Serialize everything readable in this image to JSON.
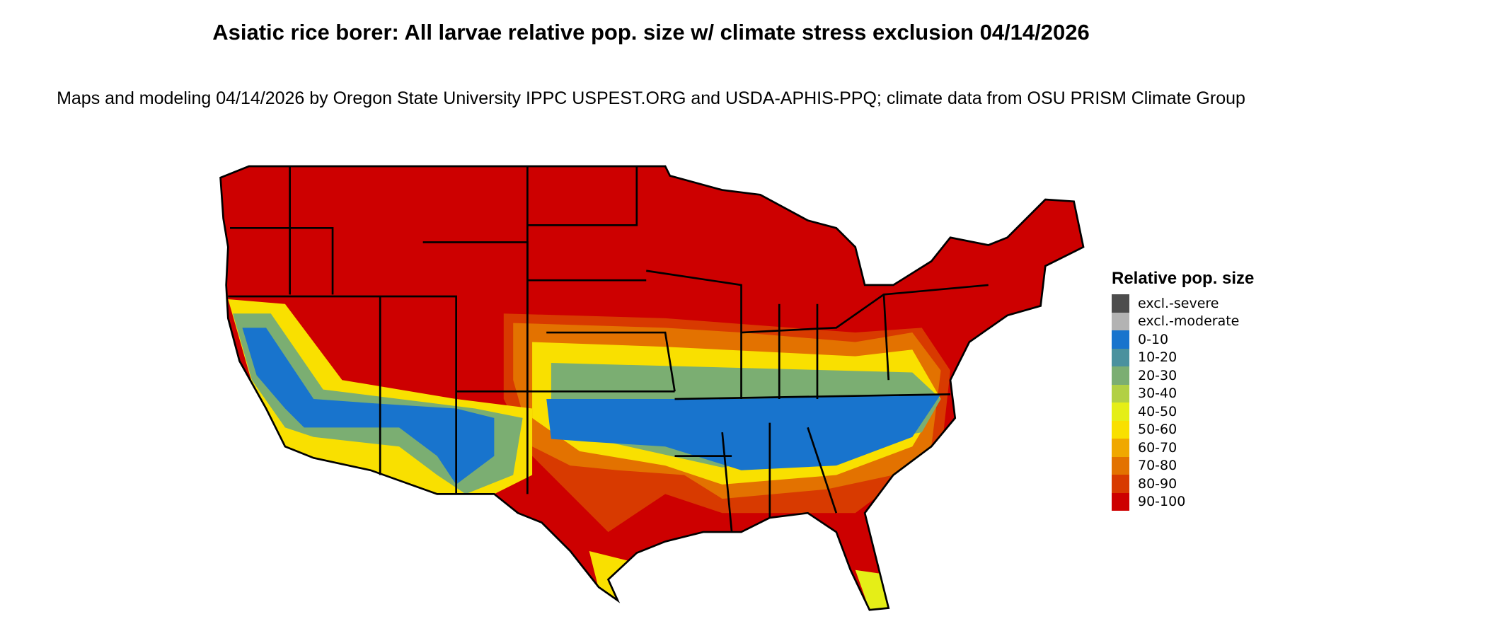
{
  "title": "Asiatic rice borer: All larvae relative pop. size w/ climate stress exclusion 04/14/2026",
  "subtitle": "Maps and modeling 04/14/2026 by Oregon State University IPPC USPEST.ORG and USDA-APHIS-PPQ; climate data from OSU PRISM Climate Group",
  "legend": {
    "title": "Relative pop. size",
    "items": [
      {
        "label": "excl.-severe",
        "color": "#4d4d4d"
      },
      {
        "label": "excl.-moderate",
        "color": "#b3b3b3"
      },
      {
        "label": "0-10",
        "color": "#1874cd"
      },
      {
        "label": "10-20",
        "color": "#4a919e"
      },
      {
        "label": "20-30",
        "color": "#7bae72"
      },
      {
        "label": "30-40",
        "color": "#b2d044"
      },
      {
        "label": "40-50",
        "color": "#e5ee17"
      },
      {
        "label": "50-60",
        "color": "#f9e000"
      },
      {
        "label": "60-70",
        "color": "#f0a800"
      },
      {
        "label": "70-80",
        "color": "#e37200"
      },
      {
        "label": "80-90",
        "color": "#d83a00"
      },
      {
        "label": "90-100",
        "color": "#cd0000"
      }
    ]
  }
}
